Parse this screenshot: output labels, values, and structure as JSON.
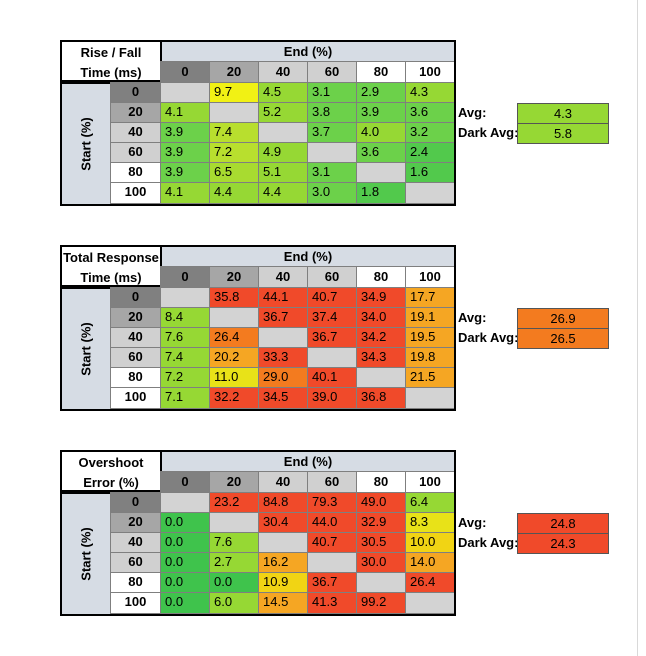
{
  "palette": {
    "header_gray": "#d6dce4",
    "row0_gray": "#808080",
    "col_gray_dark": "#a6a6a6",
    "col_gray_light": "#d0d0d0",
    "diagonal_gray": "#d3d3d3"
  },
  "chart_data": [
    {
      "type": "table",
      "corner_lines": [
        "Rise / Fall",
        "Time (ms)"
      ],
      "col_header": "End (%)",
      "row_header": "Start (%)",
      "columns": [
        "0",
        "20",
        "40",
        "60",
        "80",
        "100"
      ],
      "rows": [
        "0",
        "20",
        "40",
        "60",
        "80",
        "100"
      ],
      "values": [
        [
          "",
          "9.7",
          "4.5",
          "3.1",
          "2.9",
          "4.3"
        ],
        [
          "4.1",
          "",
          "5.2",
          "3.8",
          "3.9",
          "3.6"
        ],
        [
          "3.9",
          "7.4",
          "",
          "3.7",
          "4.0",
          "3.2"
        ],
        [
          "3.9",
          "7.2",
          "4.9",
          "",
          "3.6",
          "2.4"
        ],
        [
          "3.9",
          "6.5",
          "5.1",
          "3.1",
          "",
          "1.6"
        ],
        [
          "4.1",
          "4.4",
          "4.4",
          "3.0",
          "1.8",
          ""
        ]
      ],
      "colors": [
        [
          null,
          "#f1f114",
          "#96d834",
          "#6cd14a",
          "#6cd14a",
          "#96d834"
        ],
        [
          "#96d834",
          null,
          "#96d834",
          "#6cd14a",
          "#6cd14a",
          "#6cd14a"
        ],
        [
          "#6cd14a",
          "#b8df2e",
          null,
          "#6cd14a",
          "#96d834",
          "#6cd14a"
        ],
        [
          "#6cd14a",
          "#b8df2e",
          "#96d834",
          null,
          "#6cd14a",
          "#52c94c"
        ],
        [
          "#6cd14a",
          "#a8db30",
          "#96d834",
          "#6cd14a",
          null,
          "#52c94c"
        ],
        [
          "#96d834",
          "#96d834",
          "#96d834",
          "#6cd14a",
          "#52c94c",
          null
        ]
      ],
      "avg_label": "Avg:",
      "avg_value": "4.3",
      "avg_color": "#96d834",
      "dark_avg_label": "Dark Avg:",
      "dark_avg_value": "5.8",
      "dark_avg_color": "#96d834"
    },
    {
      "type": "table",
      "corner_lines": [
        "Total Response",
        "Time (ms)"
      ],
      "col_header": "End (%)",
      "row_header": "Start (%)",
      "columns": [
        "0",
        "20",
        "40",
        "60",
        "80",
        "100"
      ],
      "rows": [
        "0",
        "20",
        "40",
        "60",
        "80",
        "100"
      ],
      "values": [
        [
          "",
          "35.8",
          "44.1",
          "40.7",
          "34.9",
          "17.7"
        ],
        [
          "8.4",
          "",
          "36.7",
          "37.4",
          "34.0",
          "19.1"
        ],
        [
          "7.6",
          "26.4",
          "",
          "36.7",
          "34.2",
          "19.5"
        ],
        [
          "7.4",
          "20.2",
          "33.3",
          "",
          "34.3",
          "19.8"
        ],
        [
          "7.2",
          "11.0",
          "29.0",
          "40.1",
          "",
          "21.5"
        ],
        [
          "7.1",
          "32.2",
          "34.5",
          "39.0",
          "36.8",
          ""
        ]
      ],
      "colors": [
        [
          null,
          "#f04a2a",
          "#f04a2a",
          "#f04a2a",
          "#f04a2a",
          "#f5a623"
        ],
        [
          "#96d834",
          null,
          "#f04a2a",
          "#f04a2a",
          "#f04a2a",
          "#f5a623"
        ],
        [
          "#96d834",
          "#f37b1f",
          null,
          "#f04a2a",
          "#f04a2a",
          "#f5a623"
        ],
        [
          "#96d834",
          "#f5a623",
          "#f04a2a",
          null,
          "#f04a2a",
          "#f5a623"
        ],
        [
          "#96d834",
          "#e8e218",
          "#f37b1f",
          "#f04a2a",
          null,
          "#f5a623"
        ],
        [
          "#96d834",
          "#f04a2a",
          "#f04a2a",
          "#f04a2a",
          "#f04a2a",
          null
        ]
      ],
      "avg_label": "Avg:",
      "avg_value": "26.9",
      "avg_color": "#f37b1f",
      "dark_avg_label": "Dark Avg:",
      "dark_avg_value": "26.5",
      "dark_avg_color": "#f37b1f"
    },
    {
      "type": "table",
      "corner_lines": [
        "Overshoot",
        "Error (%)"
      ],
      "col_header": "End (%)",
      "row_header": "Start (%)",
      "columns": [
        "0",
        "20",
        "40",
        "60",
        "80",
        "100"
      ],
      "rows": [
        "0",
        "20",
        "40",
        "60",
        "80",
        "100"
      ],
      "values": [
        [
          "",
          "23.2",
          "84.8",
          "79.3",
          "49.0",
          "6.4"
        ],
        [
          "0.0",
          "",
          "30.4",
          "44.0",
          "32.9",
          "8.3"
        ],
        [
          "0.0",
          "7.6",
          "",
          "40.7",
          "30.5",
          "10.0"
        ],
        [
          "0.0",
          "2.7",
          "16.2",
          "",
          "30.0",
          "14.0"
        ],
        [
          "0.0",
          "0.0",
          "10.9",
          "36.7",
          "",
          "26.4"
        ],
        [
          "0.0",
          "6.0",
          "14.5",
          "41.3",
          "99.2",
          ""
        ]
      ],
      "colors": [
        [
          null,
          "#f04a2a",
          "#f04a2a",
          "#f04a2a",
          "#f04a2a",
          "#96d834"
        ],
        [
          "#3fc34c",
          null,
          "#f04a2a",
          "#f04a2a",
          "#f04a2a",
          "#e8e218"
        ],
        [
          "#3fc34c",
          "#96d834",
          null,
          "#f04a2a",
          "#f04a2a",
          "#f1d414"
        ],
        [
          "#3fc34c",
          "#96d834",
          "#f5a623",
          null,
          "#f04a2a",
          "#f5a623"
        ],
        [
          "#3fc34c",
          "#3fc34c",
          "#f1d414",
          "#f04a2a",
          null,
          "#f04a2a"
        ],
        [
          "#3fc34c",
          "#96d834",
          "#f5a623",
          "#f04a2a",
          "#f04a2a",
          null
        ]
      ],
      "avg_label": "Avg:",
      "avg_value": "24.8",
      "avg_color": "#f04a2a",
      "dark_avg_label": "Dark Avg:",
      "dark_avg_value": "24.3",
      "dark_avg_color": "#f04a2a"
    }
  ]
}
